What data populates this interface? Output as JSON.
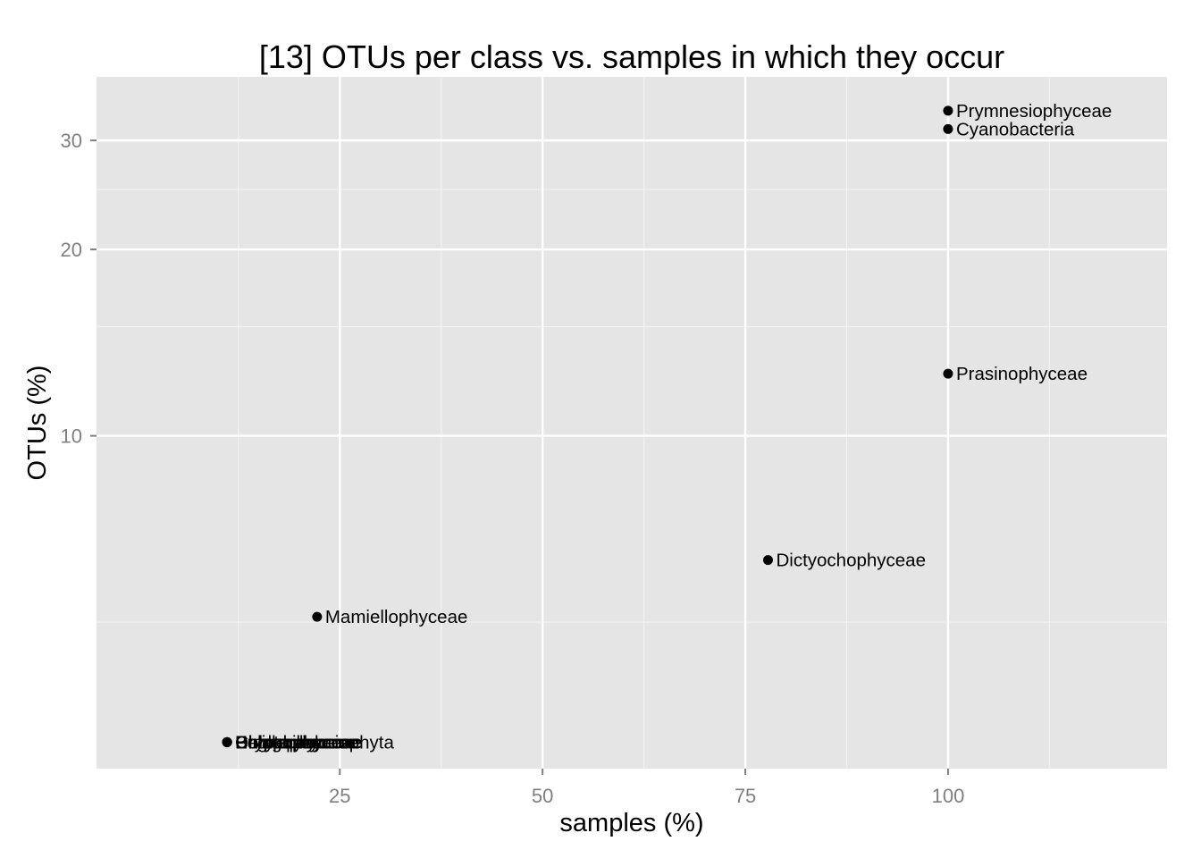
{
  "chart_data": {
    "type": "scatter",
    "title": "[13] OTUs per class vs. samples in which they occur",
    "xlabel": "samples (%)",
    "ylabel": "OTUs (%)",
    "x_scale": "linear",
    "y_scale": "log10",
    "xlim": [
      -5,
      127
    ],
    "ylim": [
      2.9,
      38
    ],
    "x_ticks": [
      25,
      50,
      75,
      100
    ],
    "x_tick_labels": [
      "25",
      "50",
      "75",
      "100"
    ],
    "x_minor_ticks": [
      12.5,
      37.5,
      62.5,
      87.5,
      112.5
    ],
    "y_ticks": [
      10,
      20,
      30
    ],
    "y_tick_labels": [
      "10",
      "20",
      "30"
    ],
    "y_minor_ticks": [
      5,
      15,
      25
    ],
    "grid": true,
    "panel_background": "#e5e5e5",
    "grid_color": "#ffffff",
    "point_color": "#000000",
    "points": [
      {
        "label": "Prymnesiophyceae",
        "x": 100,
        "y": 33.5
      },
      {
        "label": "Cyanobacteria",
        "x": 100,
        "y": 31.3
      },
      {
        "label": "Prasinophyceae",
        "x": 100,
        "y": 12.6
      },
      {
        "label": "Dictyochophyceae",
        "x": 77.8,
        "y": 6.3
      },
      {
        "label": "Mamiellophyceae",
        "x": 22.2,
        "y": 5.1
      },
      {
        "label": "Bolidophyceae",
        "x": 11.1,
        "y": 3.2
      },
      {
        "label": "Chlorarachniophyta",
        "x": 11.1,
        "y": 3.2
      },
      {
        "label": "Cryptophyceae",
        "x": 11.1,
        "y": 3.2
      },
      {
        "label": "Dinophyceae",
        "x": 11.1,
        "y": 3.2
      },
      {
        "label": "Euglenida",
        "x": 11.1,
        "y": 3.2
      },
      {
        "label": "Pelagophyceae",
        "x": 11.1,
        "y": 3.2
      },
      {
        "label": "Chrysophyceae",
        "x": 11.1,
        "y": 3.2
      }
    ]
  }
}
